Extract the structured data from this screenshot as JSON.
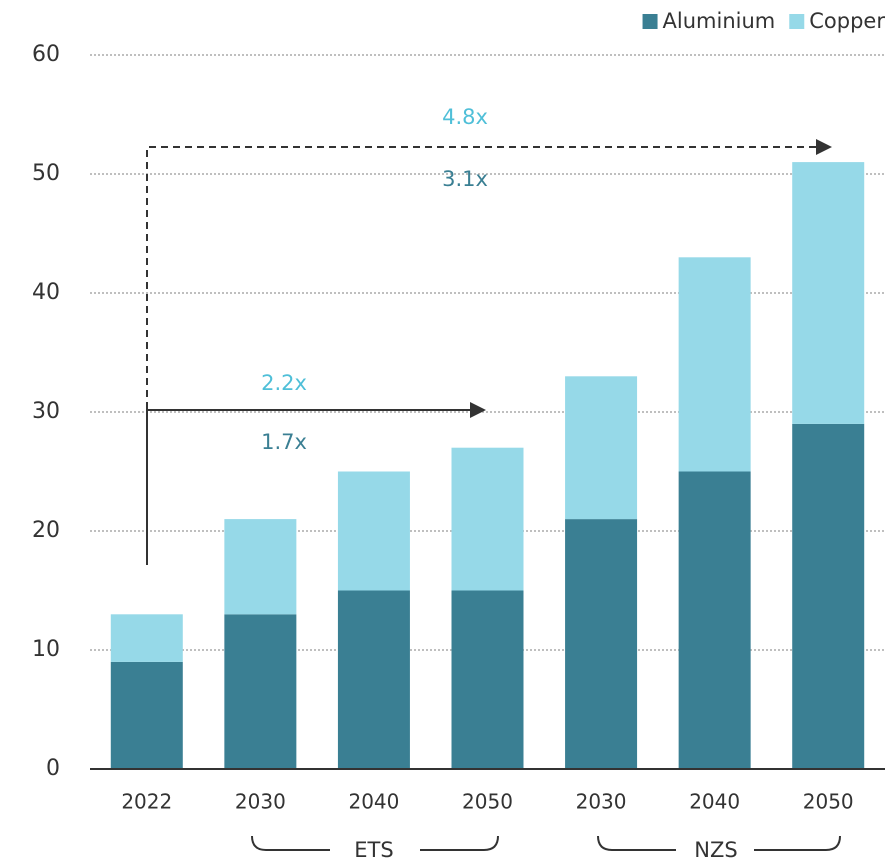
{
  "chart_data": {
    "type": "stacked_bar",
    "categories": [
      "2022",
      "2030",
      "2040",
      "2050",
      "2030",
      "2040",
      "2050"
    ],
    "category_groups": [
      "ETS",
      "NZS"
    ],
    "series": [
      {
        "name": "Aluminium",
        "color": "#3a7f93",
        "values": [
          9,
          13,
          15,
          15,
          21,
          25,
          29
        ]
      },
      {
        "name": "Copper",
        "color": "#96d9e8",
        "values": [
          4,
          8,
          10,
          12,
          12,
          18,
          22
        ]
      }
    ],
    "annotations": [
      "4.8x",
      "3.1x",
      "2.2x",
      "1.7x"
    ],
    "ylim": [
      0,
      60
    ],
    "yticks": [
      0,
      10,
      20,
      30,
      40,
      50,
      60
    ],
    "grid": true,
    "legend": "top-right"
  }
}
